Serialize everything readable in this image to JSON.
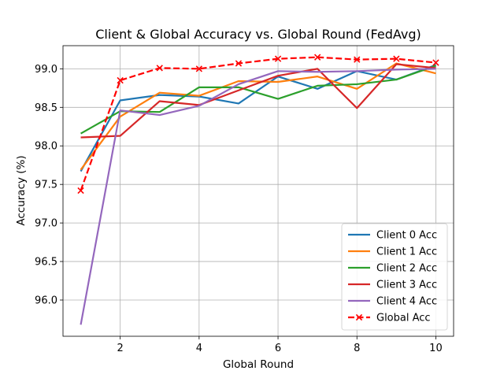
{
  "chart_data": {
    "type": "line",
    "title": "Client & Global Accuracy vs. Global Round (FedAvg)",
    "xlabel": "Global Round",
    "ylabel": "Accuracy (%)",
    "x": [
      1,
      2,
      3,
      4,
      5,
      6,
      7,
      8,
      9,
      10
    ],
    "xlim": [
      0.55,
      10.45
    ],
    "ylim": [
      95.53,
      99.3
    ],
    "xticks": [
      2,
      4,
      6,
      8,
      10
    ],
    "yticks": [
      96.0,
      96.5,
      97.0,
      97.5,
      98.0,
      98.5,
      99.0
    ],
    "ytick_labels": [
      "96.0",
      "96.5",
      "97.0",
      "97.5",
      "98.0",
      "98.5",
      "99.0"
    ],
    "grid": true,
    "legend_position": "lower-right",
    "series": [
      {
        "name": "Client 0 Acc",
        "color": "#1f77b4",
        "style": "solid",
        "marker": "none",
        "values": [
          97.67,
          98.59,
          98.66,
          98.64,
          98.55,
          98.9,
          98.74,
          98.97,
          98.86,
          99.05
        ]
      },
      {
        "name": "Client 1 Acc",
        "color": "#ff7f0e",
        "style": "solid",
        "marker": "none",
        "values": [
          97.69,
          98.38,
          98.69,
          98.65,
          98.84,
          98.83,
          98.9,
          98.74,
          99.07,
          98.94
        ]
      },
      {
        "name": "Client 2 Acc",
        "color": "#2ca02c",
        "style": "solid",
        "marker": "none",
        "values": [
          98.16,
          98.45,
          98.44,
          98.76,
          98.76,
          98.61,
          98.78,
          98.8,
          98.86,
          99.04
        ]
      },
      {
        "name": "Client 3 Acc",
        "color": "#d62728",
        "style": "solid",
        "marker": "none",
        "values": [
          98.11,
          98.13,
          98.58,
          98.53,
          98.72,
          98.91,
          99.0,
          98.49,
          99.06,
          99.01
        ]
      },
      {
        "name": "Client 4 Acc",
        "color": "#9467bd",
        "style": "solid",
        "marker": "none",
        "values": [
          95.68,
          98.46,
          98.4,
          98.52,
          98.8,
          98.97,
          98.96,
          98.97,
          98.99,
          99.0
        ]
      },
      {
        "name": "Global Acc",
        "color": "#ff0000",
        "style": "dashed",
        "marker": "x",
        "values": [
          97.42,
          98.85,
          99.01,
          99.0,
          99.07,
          99.13,
          99.15,
          99.12,
          99.13,
          99.08
        ]
      }
    ]
  }
}
